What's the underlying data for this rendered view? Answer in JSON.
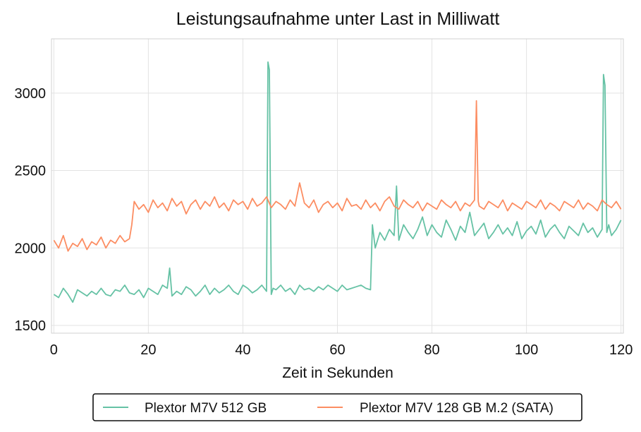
{
  "chart_data": {
    "type": "line",
    "title": "Leistungsaufnahme unter Last in Milliwatt",
    "xlabel": "Zeit in Sekunden",
    "ylabel": "",
    "xlim": [
      -0.5,
      120.5
    ],
    "ylim": [
      1450,
      3350
    ],
    "xticks": [
      0,
      20,
      40,
      60,
      80,
      100,
      120
    ],
    "yticks": [
      1500,
      2000,
      2500,
      3000
    ],
    "grid": true,
    "legend_position": "bottom-center",
    "series": [
      {
        "name": "Plextor M7V 512 GB",
        "color": "#66c2a5",
        "x": [
          0,
          1,
          2,
          3,
          4,
          5,
          6,
          7,
          8,
          9,
          10,
          11,
          12,
          13,
          14,
          15,
          16,
          17,
          18,
          19,
          20,
          21,
          22,
          23,
          24,
          24.5,
          25,
          26,
          27,
          28,
          29,
          30,
          31,
          32,
          33,
          34,
          35,
          36,
          37,
          38,
          39,
          40,
          41,
          42,
          43,
          44,
          45,
          45.3,
          45.6,
          46,
          46.4,
          47,
          48,
          49,
          50,
          51,
          52,
          53,
          54,
          55,
          56,
          57,
          58,
          59,
          60,
          61,
          62,
          63,
          64,
          65,
          66,
          67,
          67.4,
          68,
          69,
          70,
          71,
          72,
          72.5,
          73,
          74,
          75,
          76,
          77,
          78,
          79,
          80,
          81,
          82,
          83,
          84,
          85,
          86,
          87,
          88,
          89,
          90,
          91,
          92,
          93,
          94,
          95,
          96,
          97,
          98,
          99,
          100,
          101,
          102,
          103,
          104,
          105,
          106,
          107,
          108,
          109,
          110,
          111,
          112,
          113,
          114,
          115,
          116,
          116.3,
          116.6,
          117,
          117.4,
          118,
          119,
          120
        ],
        "y": [
          1700,
          1680,
          1740,
          1700,
          1650,
          1730,
          1710,
          1690,
          1720,
          1700,
          1740,
          1700,
          1690,
          1730,
          1720,
          1760,
          1710,
          1700,
          1730,
          1680,
          1740,
          1720,
          1700,
          1760,
          1740,
          1870,
          1690,
          1720,
          1700,
          1750,
          1730,
          1690,
          1720,
          1760,
          1700,
          1740,
          1710,
          1730,
          1760,
          1720,
          1700,
          1760,
          1740,
          1710,
          1730,
          1760,
          1720,
          3200,
          3150,
          1700,
          1740,
          1730,
          1760,
          1720,
          1740,
          1700,
          1760,
          1730,
          1740,
          1720,
          1750,
          1730,
          1760,
          1740,
          1720,
          1760,
          1730,
          1740,
          1750,
          1760,
          1740,
          1730,
          2150,
          2000,
          2100,
          2050,
          2120,
          2080,
          2400,
          2050,
          2150,
          2100,
          2060,
          2120,
          2200,
          2080,
          2150,
          2100,
          2070,
          2180,
          2120,
          2050,
          2140,
          2100,
          2230,
          2080,
          2120,
          2160,
          2060,
          2100,
          2150,
          2090,
          2130,
          2080,
          2170,
          2060,
          2110,
          2140,
          2090,
          2180,
          2070,
          2120,
          2150,
          2100,
          2060,
          2140,
          2110,
          2080,
          2160,
          2100,
          2130,
          2070,
          2120,
          3120,
          3050,
          2100,
          2150,
          2080,
          2120,
          2180
        ]
      },
      {
        "name": "Plextor M7V 128 GB M.2 (SATA)",
        "color": "#fc8d62",
        "x": [
          0,
          1,
          2,
          3,
          4,
          5,
          6,
          7,
          8,
          9,
          10,
          11,
          12,
          13,
          14,
          15,
          16,
          16.5,
          17,
          18,
          19,
          20,
          21,
          22,
          23,
          24,
          25,
          26,
          27,
          28,
          29,
          30,
          31,
          32,
          33,
          34,
          35,
          36,
          37,
          38,
          39,
          40,
          41,
          42,
          43,
          44,
          45,
          46,
          47,
          48,
          49,
          50,
          51,
          52,
          53,
          54,
          55,
          56,
          57,
          58,
          59,
          60,
          61,
          62,
          63,
          64,
          65,
          66,
          67,
          68,
          69,
          70,
          71,
          72,
          73,
          74,
          75,
          76,
          77,
          78,
          79,
          80,
          81,
          82,
          83,
          84,
          85,
          86,
          87,
          88,
          89,
          89.4,
          89.8,
          90,
          91,
          92,
          93,
          94,
          95,
          96,
          97,
          98,
          99,
          100,
          101,
          102,
          103,
          104,
          105,
          106,
          107,
          108,
          109,
          110,
          111,
          112,
          113,
          114,
          115,
          116,
          117,
          118,
          119,
          120
        ],
        "y": [
          2050,
          2000,
          2080,
          1980,
          2030,
          2010,
          2060,
          1990,
          2040,
          2020,
          2070,
          2000,
          2050,
          2030,
          2080,
          2040,
          2060,
          2150,
          2300,
          2250,
          2280,
          2230,
          2310,
          2260,
          2290,
          2240,
          2320,
          2270,
          2300,
          2220,
          2280,
          2310,
          2250,
          2300,
          2270,
          2330,
          2260,
          2290,
          2240,
          2310,
          2280,
          2300,
          2250,
          2320,
          2270,
          2290,
          2330,
          2260,
          2300,
          2280,
          2250,
          2310,
          2270,
          2420,
          2290,
          2260,
          2310,
          2230,
          2280,
          2300,
          2260,
          2290,
          2240,
          2320,
          2270,
          2280,
          2250,
          2310,
          2260,
          2290,
          2240,
          2300,
          2330,
          2270,
          2250,
          2310,
          2280,
          2260,
          2300,
          2240,
          2290,
          2270,
          2250,
          2310,
          2280,
          2260,
          2300,
          2240,
          2290,
          2270,
          2310,
          2950,
          2300,
          2270,
          2250,
          2300,
          2280,
          2260,
          2310,
          2240,
          2290,
          2270,
          2250,
          2300,
          2280,
          2260,
          2310,
          2250,
          2290,
          2270,
          2240,
          2300,
          2280,
          2260,
          2310,
          2250,
          2290,
          2270,
          2240,
          2310,
          2280,
          2260,
          2300,
          2250
        ]
      }
    ]
  }
}
